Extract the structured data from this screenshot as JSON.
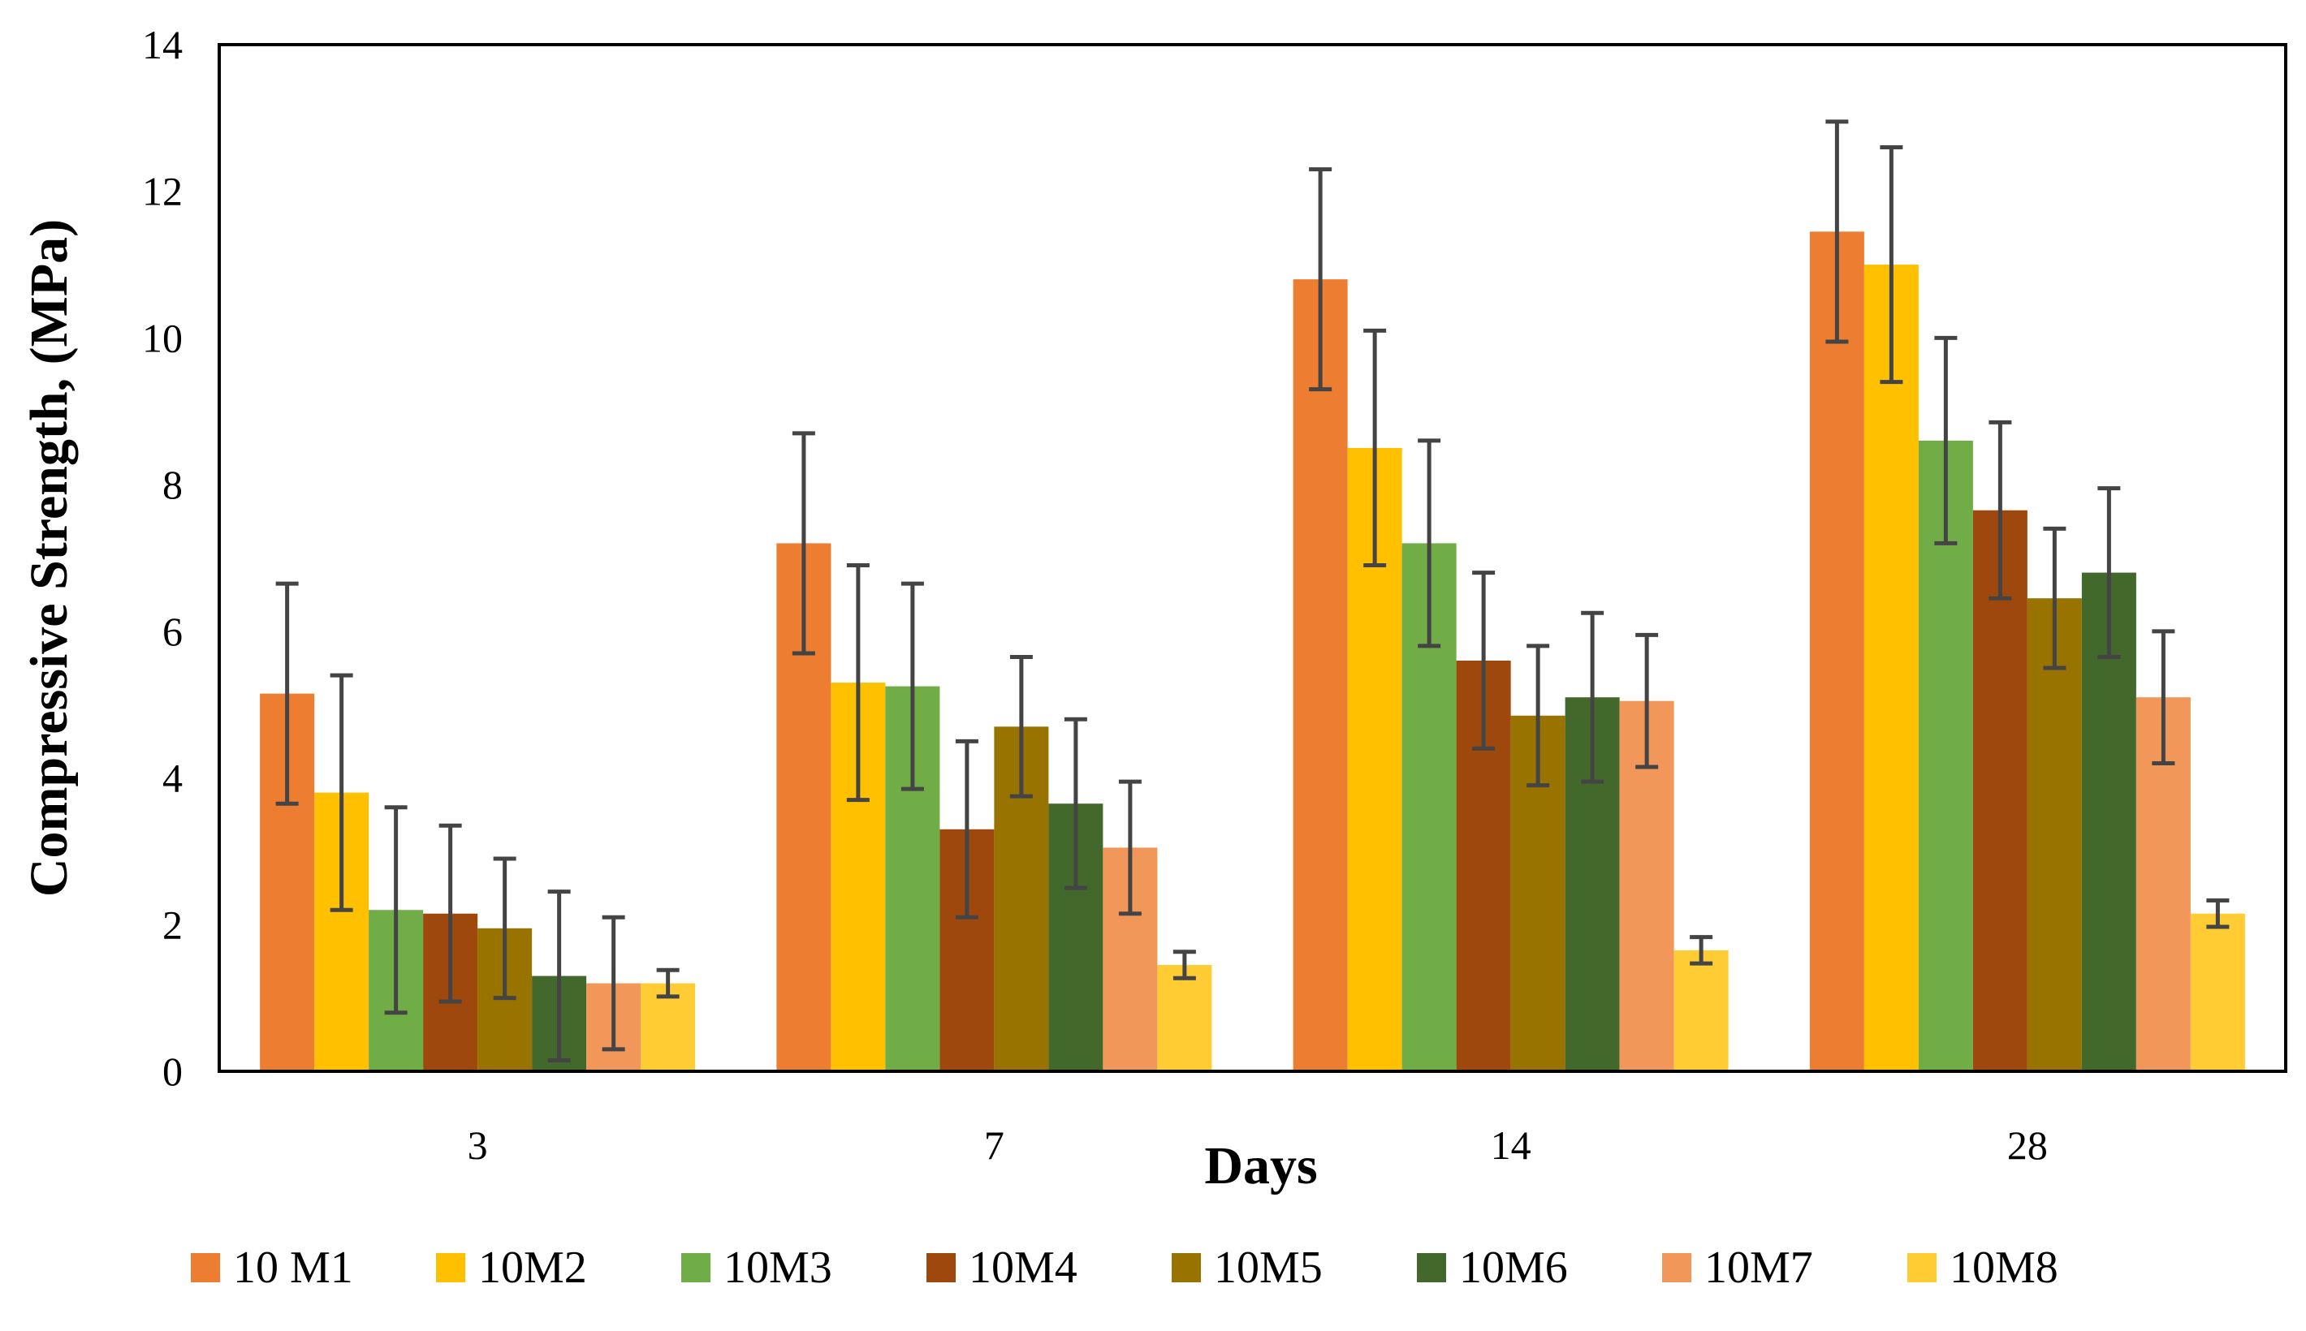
{
  "chart_data": {
    "type": "bar",
    "title": "",
    "xlabel": "Days",
    "ylabel": "Compressive Strength, (MPa)",
    "categories": [
      "3",
      "7",
      "14",
      "28"
    ],
    "ylim": [
      0,
      14
    ],
    "yticks": [
      0,
      2,
      4,
      6,
      8,
      10,
      12,
      14
    ],
    "grid": false,
    "legend_position": "bottom",
    "series": [
      {
        "name": "10 M1",
        "color": "#ED7D31",
        "values": [
          5.15,
          7.2,
          10.8,
          11.45
        ],
        "error": [
          1.5,
          1.5,
          1.5,
          1.5
        ]
      },
      {
        "name": "10M2",
        "color": "#FFC000",
        "values": [
          3.8,
          5.3,
          8.5,
          11.0
        ],
        "error": [
          1.6,
          1.6,
          1.6,
          1.6
        ]
      },
      {
        "name": "10M3",
        "color": "#70AD47",
        "values": [
          2.2,
          5.25,
          7.2,
          8.6
        ],
        "error": [
          1.4,
          1.4,
          1.4,
          1.4
        ]
      },
      {
        "name": "10M4",
        "color": "#9E480E",
        "values": [
          2.15,
          3.3,
          5.6,
          7.65
        ],
        "error": [
          1.2,
          1.2,
          1.2,
          1.2
        ]
      },
      {
        "name": "10M5",
        "color": "#997300",
        "values": [
          1.95,
          4.7,
          4.85,
          6.45
        ],
        "error": [
          0.95,
          0.95,
          0.95,
          0.95
        ]
      },
      {
        "name": "10M6",
        "color": "#43682B",
        "values": [
          1.3,
          3.65,
          5.1,
          6.8
        ],
        "error": [
          1.15,
          1.15,
          1.15,
          1.15
        ]
      },
      {
        "name": "10M7",
        "color": "#F1975A",
        "values": [
          1.2,
          3.05,
          5.05,
          5.1
        ],
        "error": [
          0.9,
          0.9,
          0.9,
          0.9
        ]
      },
      {
        "name": "10M8",
        "color": "#FFCD33",
        "values": [
          1.2,
          1.45,
          1.65,
          2.15
        ],
        "error": [
          0.18,
          0.18,
          0.18,
          0.18
        ]
      }
    ]
  }
}
